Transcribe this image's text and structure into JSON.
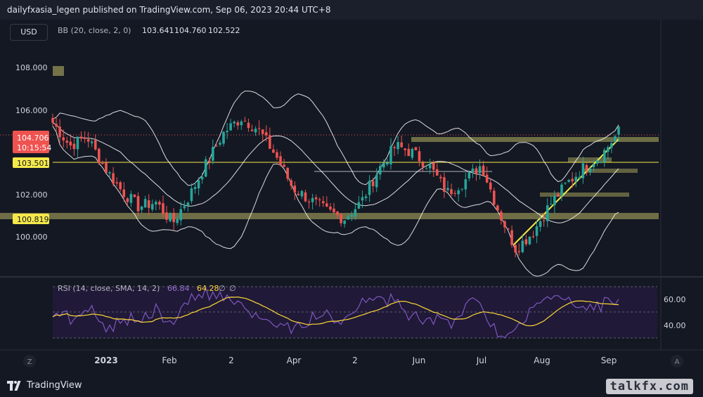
{
  "header": {
    "text": "dailyfxasia_legen published on TradingView.com, Sep 06, 2023 20:44 UTC+8"
  },
  "currency": "USD",
  "bb_legend": {
    "label": "BB (20, close, 2, 0)",
    "basis": "103.641",
    "upper": "104.760",
    "lower": "102.522"
  },
  "rsi_legend": {
    "label": "RSI (14, close, SMA, 14, 2)",
    "rsi": "66.84",
    "sma": "64.28",
    "v1": "∅",
    "v2": "∅"
  },
  "price_axis": [
    "108.000",
    "106.000",
    "102.000",
    "100.000"
  ],
  "rsi_axis": [
    "60.00",
    "40.00"
  ],
  "price_labels": {
    "last": "104.706",
    "countdown": "10:15:54",
    "level1": "103.501",
    "level2": "100.819"
  },
  "time_axis": [
    "2023",
    "Feb",
    "2",
    "Apr",
    "2",
    "Jun",
    "Jul",
    "Aug",
    "Sep"
  ],
  "corner_buttons": {
    "left": "Z",
    "right": "A"
  },
  "footer": {
    "brand": "TradingView",
    "watermark": "talkfx.com"
  },
  "colors": {
    "up": "#26a69a",
    "down": "#ef5350",
    "bands": "#ffffff",
    "rsi": "#7e57c2",
    "rsi_sma": "#fdd835",
    "levels": "#f5e94a",
    "zone": "#8c8a52"
  },
  "chart_data": {
    "type": "candlestick",
    "ylim": [
      98.6,
      109.6
    ],
    "rsi_range": [
      30,
      70
    ],
    "price_path": [
      [
        0,
        105.2
      ],
      [
        3,
        104.2
      ],
      [
        6,
        104.6
      ],
      [
        9,
        103.3
      ],
      [
        12,
        102.3
      ],
      [
        15,
        101.6
      ],
      [
        18,
        101.8
      ],
      [
        21,
        100.9
      ],
      [
        24,
        102.1
      ],
      [
        27,
        103.5
      ],
      [
        30,
        104.8
      ],
      [
        33,
        105.4
      ],
      [
        36,
        104.9
      ],
      [
        39,
        103.8
      ],
      [
        42,
        102.4
      ],
      [
        45,
        101.9
      ],
      [
        48,
        101.4
      ],
      [
        51,
        101.1
      ],
      [
        54,
        101.8
      ],
      [
        57,
        103.2
      ],
      [
        60,
        104.2
      ],
      [
        63,
        103.9
      ],
      [
        66,
        103.3
      ],
      [
        69,
        102.2
      ],
      [
        72,
        102.7
      ],
      [
        75,
        103.4
      ],
      [
        78,
        101.4
      ],
      [
        81,
        99.8
      ],
      [
        84,
        100.5
      ],
      [
        87,
        101.7
      ],
      [
        90,
        102.6
      ],
      [
        93,
        103.3
      ],
      [
        96,
        103.8
      ],
      [
        99,
        104.8
      ]
    ],
    "time_ticks": [
      "2023",
      "Feb",
      "2",
      "Apr",
      "2",
      "Jun",
      "Jul",
      "Aug",
      "Sep"
    ],
    "horizontal_levels": [
      103.501,
      100.819
    ]
  }
}
